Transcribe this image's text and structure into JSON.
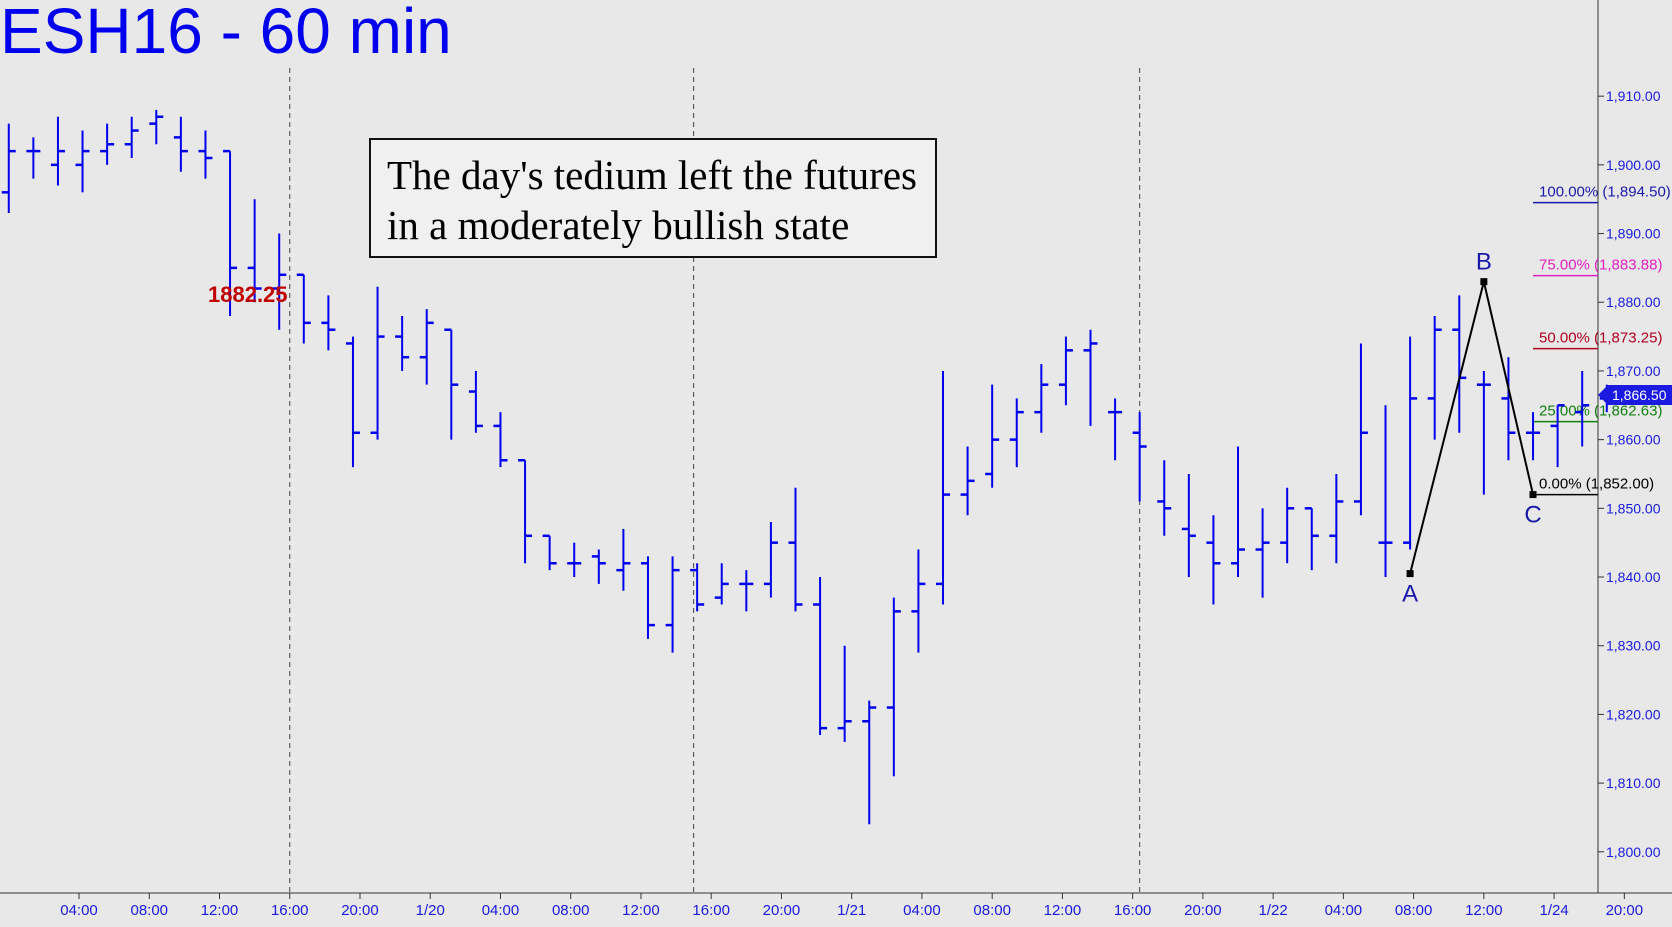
{
  "title": "ESH16 - 60 min",
  "annotation": {
    "line1": "The day's tedium left the futures",
    "line2": "in a moderately bullish state"
  },
  "peak_label": "1882.25",
  "colors": {
    "bars": "#0000ee",
    "background": "#e8e8e8",
    "peak_label": "#c00000",
    "fib_100": "#1a1aaa",
    "fib_75": "#e020c0",
    "fib_50": "#b00020",
    "fib_25": "#108010",
    "fib_0": "#000000",
    "last_price_tag": "#1a1ae0"
  },
  "chart_data": {
    "type": "ohlc",
    "ylim": [
      1794,
      1924
    ],
    "y_ticks": [
      "1,800.00",
      "1,810.00",
      "1,820.00",
      "1,830.00",
      "1,840.00",
      "1,850.00",
      "1,860.00",
      "1,870.00",
      "1,880.00",
      "1,890.00",
      "1,900.00",
      "1,910.00"
    ],
    "y_tick_values": [
      1800,
      1810,
      1820,
      1830,
      1840,
      1850,
      1860,
      1870,
      1880,
      1890,
      1900,
      1910
    ],
    "x_ticks": [
      "04:00",
      "08:00",
      "12:00",
      "16:00",
      "20:00",
      "1/20",
      "04:00",
      "08:00",
      "12:00",
      "16:00",
      "20:00",
      "1/21",
      "04:00",
      "08:00",
      "12:00",
      "16:00",
      "20:00",
      "1/22",
      "04:00",
      "08:00",
      "12:00",
      "1/24",
      "20:00"
    ],
    "x_tick_hours": [
      4,
      8,
      12,
      16,
      20,
      24,
      28,
      32,
      36,
      40,
      44,
      48,
      52,
      56,
      60,
      64,
      68,
      72,
      76,
      80,
      84,
      88,
      92
    ],
    "x_range_hours": [
      -0.5,
      90.5
    ],
    "session_dividers_hours": [
      16,
      39,
      64.4
    ],
    "last_price": "1,866.50",
    "last_price_value": 1866.5,
    "bars": [
      {
        "o": 1896,
        "h": 1906,
        "l": 1893,
        "c": 1902
      },
      {
        "o": 1902,
        "h": 1904,
        "l": 1898,
        "c": 1902
      },
      {
        "o": 1900,
        "h": 1907,
        "l": 1897,
        "c": 1902
      },
      {
        "o": 1900,
        "h": 1905,
        "l": 1896,
        "c": 1902
      },
      {
        "o": 1902,
        "h": 1906,
        "l": 1900,
        "c": 1903
      },
      {
        "o": 1903,
        "h": 1907,
        "l": 1901,
        "c": 1905
      },
      {
        "o": 1906,
        "h": 1908,
        "l": 1903,
        "c": 1907
      },
      {
        "o": 1904,
        "h": 1907,
        "l": 1899,
        "c": 1902
      },
      {
        "o": 1902,
        "h": 1905,
        "l": 1898,
        "c": 1901
      },
      {
        "o": 1902,
        "h": 1902,
        "l": 1878,
        "c": 1885
      },
      {
        "o": 1885,
        "h": 1895,
        "l": 1880,
        "c": 1882
      },
      {
        "o": 1882,
        "h": 1890,
        "l": 1876,
        "c": 1884
      },
      {
        "o": 1884,
        "h": 1884,
        "l": 1874,
        "c": 1877
      },
      {
        "o": 1877,
        "h": 1881,
        "l": 1873,
        "c": 1876
      },
      {
        "o": 1874,
        "h": 1875,
        "l": 1856,
        "c": 1861
      },
      {
        "o": 1861,
        "h": 1882.25,
        "l": 1860,
        "c": 1875
      },
      {
        "o": 1875,
        "h": 1878,
        "l": 1870,
        "c": 1872
      },
      {
        "o": 1872,
        "h": 1879,
        "l": 1868,
        "c": 1877
      },
      {
        "o": 1876,
        "h": 1876,
        "l": 1860,
        "c": 1868
      },
      {
        "o": 1867,
        "h": 1870,
        "l": 1861,
        "c": 1862
      },
      {
        "o": 1862,
        "h": 1864,
        "l": 1856,
        "c": 1857
      },
      {
        "o": 1857,
        "h": 1857,
        "l": 1842,
        "c": 1846
      },
      {
        "o": 1846,
        "h": 1846,
        "l": 1841,
        "c": 1842
      },
      {
        "o": 1842,
        "h": 1845,
        "l": 1840,
        "c": 1842
      },
      {
        "o": 1843,
        "h": 1844,
        "l": 1839,
        "c": 1842
      },
      {
        "o": 1841,
        "h": 1847,
        "l": 1838,
        "c": 1842
      },
      {
        "o": 1842,
        "h": 1843,
        "l": 1831,
        "c": 1833
      },
      {
        "o": 1833,
        "h": 1843,
        "l": 1829,
        "c": 1841
      },
      {
        "o": 1841,
        "h": 1842,
        "l": 1835,
        "c": 1836
      },
      {
        "o": 1837,
        "h": 1842,
        "l": 1836,
        "c": 1839
      },
      {
        "o": 1839,
        "h": 1841,
        "l": 1835,
        "c": 1839
      },
      {
        "o": 1839,
        "h": 1848,
        "l": 1837,
        "c": 1845
      },
      {
        "o": 1845,
        "h": 1853,
        "l": 1835,
        "c": 1836
      },
      {
        "o": 1836,
        "h": 1840,
        "l": 1817,
        "c": 1818
      },
      {
        "o": 1818,
        "h": 1830,
        "l": 1816,
        "c": 1819
      },
      {
        "o": 1819,
        "h": 1822,
        "l": 1804,
        "c": 1821
      },
      {
        "o": 1821,
        "h": 1837,
        "l": 1811,
        "c": 1835
      },
      {
        "o": 1835,
        "h": 1844,
        "l": 1829,
        "c": 1839
      },
      {
        "o": 1839,
        "h": 1870,
        "l": 1836,
        "c": 1852
      },
      {
        "o": 1852,
        "h": 1859,
        "l": 1849,
        "c": 1854
      },
      {
        "o": 1855,
        "h": 1868,
        "l": 1853,
        "c": 1860
      },
      {
        "o": 1860,
        "h": 1866,
        "l": 1856,
        "c": 1864
      },
      {
        "o": 1864,
        "h": 1871,
        "l": 1861,
        "c": 1868
      },
      {
        "o": 1868,
        "h": 1875,
        "l": 1865,
        "c": 1873
      },
      {
        "o": 1873,
        "h": 1876,
        "l": 1862,
        "c": 1874
      },
      {
        "o": 1864,
        "h": 1866,
        "l": 1857,
        "c": 1864
      },
      {
        "o": 1861,
        "h": 1864,
        "l": 1851,
        "c": 1859
      },
      {
        "o": 1851,
        "h": 1857,
        "l": 1846,
        "c": 1850
      },
      {
        "o": 1847,
        "h": 1855,
        "l": 1840,
        "c": 1846
      },
      {
        "o": 1845,
        "h": 1849,
        "l": 1836,
        "c": 1842
      },
      {
        "o": 1842,
        "h": 1859,
        "l": 1840,
        "c": 1844
      },
      {
        "o": 1844,
        "h": 1850,
        "l": 1837,
        "c": 1845
      },
      {
        "o": 1845,
        "h": 1853,
        "l": 1842,
        "c": 1850
      },
      {
        "o": 1850,
        "h": 1850,
        "l": 1841,
        "c": 1846
      },
      {
        "o": 1846,
        "h": 1855,
        "l": 1842,
        "c": 1851
      },
      {
        "o": 1851,
        "h": 1874,
        "l": 1849,
        "c": 1861
      },
      {
        "o": 1845,
        "h": 1865,
        "l": 1840,
        "c": 1845
      },
      {
        "o": 1845,
        "h": 1875,
        "l": 1844,
        "c": 1866
      },
      {
        "o": 1866,
        "h": 1878,
        "l": 1860,
        "c": 1876
      },
      {
        "o": 1876,
        "h": 1881,
        "l": 1861,
        "c": 1869
      },
      {
        "o": 1868,
        "h": 1870,
        "l": 1852,
        "c": 1868
      },
      {
        "o": 1866,
        "h": 1872,
        "l": 1857,
        "c": 1861
      },
      {
        "o": 1861,
        "h": 1864,
        "l": 1857,
        "c": 1861
      },
      {
        "o": 1862,
        "h": 1865,
        "l": 1856,
        "c": 1865
      },
      {
        "o": 1864,
        "h": 1870,
        "l": 1859,
        "c": 1865
      },
      {
        "o": 1866,
        "h": 1868,
        "l": 1864,
        "c": 1867
      }
    ],
    "fib_levels": [
      {
        "label": "100.00% (1,894.50)",
        "value": 1894.5,
        "color": "#1a1aaa"
      },
      {
        "label": "75.00% (1,883.88)",
        "value": 1883.88,
        "color": "#e020c0"
      },
      {
        "label": "50.00% (1,873.25)",
        "value": 1873.25,
        "color": "#b00020"
      },
      {
        "label": "25.00% (1,862.63)",
        "value": 1862.63,
        "color": "#108010"
      },
      {
        "label": "0.00% (1,852.00)",
        "value": 1852.0,
        "color": "#000000"
      }
    ],
    "abc_points": [
      {
        "label": "A",
        "bar_index": 57,
        "value": 1840.5
      },
      {
        "label": "B",
        "bar_index": 60,
        "value": 1883.0
      },
      {
        "label": "C",
        "bar_index": 62,
        "value": 1852.0
      }
    ]
  }
}
